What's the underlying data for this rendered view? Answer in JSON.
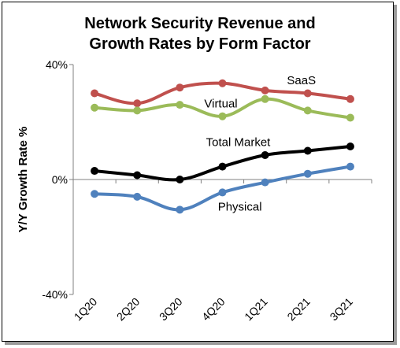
{
  "chart_data": {
    "type": "line",
    "title_lines": [
      "Network Security Revenue and",
      "Growth Rates by Form Factor"
    ],
    "xlabel": "",
    "ylabel": "Y/Y Growth Rate %",
    "categories": [
      "1Q20",
      "2Q20",
      "3Q20",
      "4Q20",
      "1Q21",
      "2Q21",
      "3Q21"
    ],
    "ylim": [
      -40,
      40
    ],
    "yticks": [
      {
        "value": 40,
        "label": "40%"
      },
      {
        "value": 0,
        "label": "0%"
      },
      {
        "value": -40,
        "label": "-40%"
      }
    ],
    "grid": false,
    "series": [
      {
        "name": "SaaS",
        "color": "#c0504d",
        "values": [
          30,
          26.5,
          32,
          33.5,
          31,
          30,
          28
        ]
      },
      {
        "name": "Virtual",
        "color": "#9bbb59",
        "values": [
          25,
          24,
          26,
          22,
          28,
          24,
          21.5
        ]
      },
      {
        "name": "Total Market",
        "color": "#000000",
        "values": [
          3,
          1.5,
          0,
          4.5,
          8.5,
          10,
          11.5
        ]
      },
      {
        "name": "Physical",
        "color": "#4f81bd",
        "values": [
          -5,
          -6,
          -10.5,
          -4.5,
          -1,
          2,
          4.5
        ]
      }
    ]
  }
}
